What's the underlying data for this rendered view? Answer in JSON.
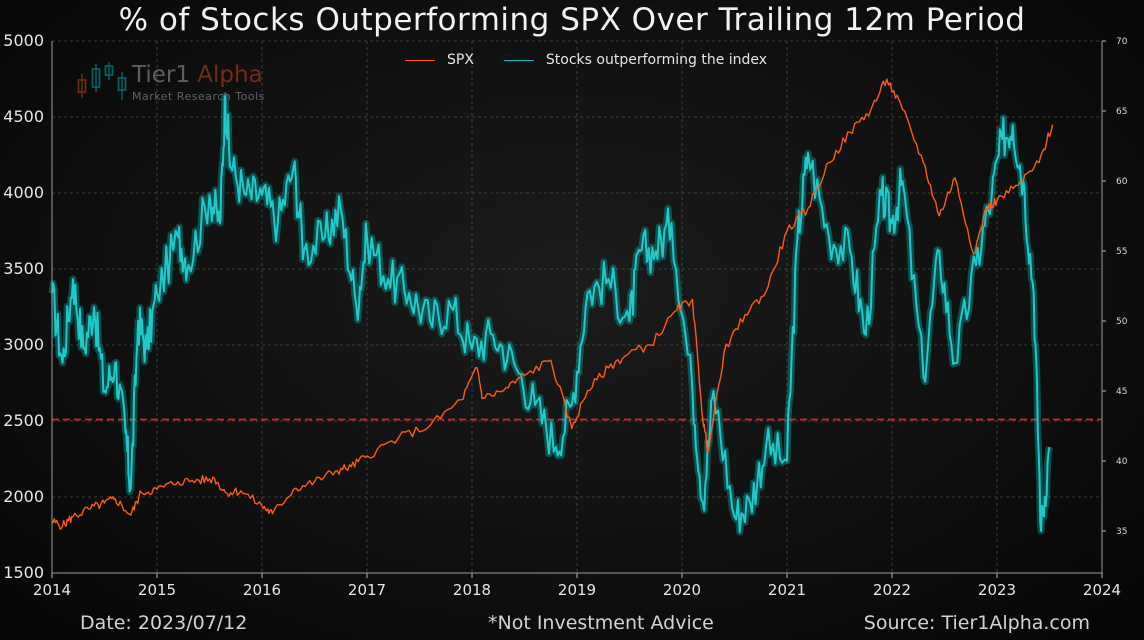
{
  "chart_data": {
    "type": "line",
    "title": "% of Stocks Outperforming SPX Over Trailing 12m Period",
    "x_ticks": [
      "2014",
      "2015",
      "2016",
      "2017",
      "2018",
      "2019",
      "2020",
      "2021",
      "2022",
      "2023",
      "2024"
    ],
    "xlim": [
      2014,
      2024
    ],
    "y_left": {
      "lim": [
        1500,
        5000
      ],
      "ticks": [
        "1500",
        "2000",
        "2500",
        "3000",
        "3500",
        "4000",
        "4500",
        "5000"
      ]
    },
    "y_right": {
      "lim": [
        32,
        70
      ],
      "ticks": [
        "35",
        "40",
        "45",
        "50",
        "55",
        "60",
        "65",
        "70"
      ]
    },
    "reference_line": {
      "axis": "left",
      "value": 2510,
      "color": "#e0201a",
      "style": "dashed"
    },
    "grid": true,
    "legend_position": "top-center",
    "series": [
      {
        "name": "SPX",
        "axis": "left",
        "color": "#ff5a14",
        "x": [
          2014.0,
          2014.1,
          2014.2,
          2014.35,
          2014.5,
          2014.6,
          2014.75,
          2014.85,
          2015.0,
          2015.2,
          2015.4,
          2015.55,
          2015.65,
          2015.8,
          2016.0,
          2016.1,
          2016.3,
          2016.5,
          2016.7,
          2016.85,
          2017.0,
          2017.3,
          2017.6,
          2017.9,
          2018.05,
          2018.1,
          2018.3,
          2018.5,
          2018.75,
          2018.95,
          2019.1,
          2019.3,
          2019.5,
          2019.7,
          2019.95,
          2020.1,
          2020.2,
          2020.25,
          2020.4,
          2020.6,
          2020.8,
          2021.0,
          2021.2,
          2021.4,
          2021.6,
          2021.8,
          2021.95,
          2022.1,
          2022.3,
          2022.45,
          2022.6,
          2022.78,
          2022.9,
          2023.0,
          2023.2,
          2023.4,
          2023.53
        ],
        "y": [
          1840,
          1810,
          1870,
          1920,
          1960,
          1990,
          1880,
          2030,
          2050,
          2100,
          2110,
          2120,
          2030,
          2040,
          1940,
          1890,
          2050,
          2100,
          2170,
          2200,
          2270,
          2390,
          2470,
          2640,
          2850,
          2650,
          2700,
          2800,
          2900,
          2450,
          2700,
          2850,
          2950,
          3000,
          3230,
          3300,
          2500,
          2300,
          2950,
          3200,
          3350,
          3750,
          3900,
          4200,
          4400,
          4550,
          4750,
          4550,
          4200,
          3850,
          4100,
          3600,
          3900,
          3950,
          4050,
          4200,
          4450
        ]
      },
      {
        "name": "Stocks outperforming the index",
        "axis": "right",
        "color": "#00bfbf",
        "x": [
          2014.0,
          2014.1,
          2014.2,
          2014.3,
          2014.4,
          2014.5,
          2014.6,
          2014.7,
          2014.75,
          2014.82,
          2014.9,
          2015.0,
          2015.2,
          2015.3,
          2015.5,
          2015.6,
          2015.65,
          2015.7,
          2015.85,
          2016.0,
          2016.15,
          2016.3,
          2016.4,
          2016.6,
          2016.75,
          2016.9,
          2017.0,
          2017.2,
          2017.4,
          2017.6,
          2017.8,
          2018.0,
          2018.2,
          2018.4,
          2018.6,
          2018.8,
          2018.95,
          2019.1,
          2019.3,
          2019.5,
          2019.6,
          2019.75,
          2019.9,
          2020.1,
          2020.2,
          2020.3,
          2020.5,
          2020.65,
          2020.8,
          2021.0,
          2021.1,
          2021.2,
          2021.4,
          2021.6,
          2021.75,
          2021.9,
          2022.0,
          2022.1,
          2022.3,
          2022.45,
          2022.6,
          2022.8,
          2022.95,
          2023.05,
          2023.15,
          2023.25,
          2023.35,
          2023.42,
          2023.5
        ],
        "y": [
          52,
          47,
          53,
          48,
          51,
          45,
          47,
          42,
          38,
          50,
          48,
          52,
          56,
          54,
          59,
          57,
          66,
          61,
          59,
          59,
          57,
          61,
          55,
          56,
          58,
          51,
          56,
          53,
          52,
          50,
          51,
          48,
          49,
          47,
          44,
          41,
          44,
          52,
          53,
          50,
          55,
          55,
          57,
          45,
          37,
          45,
          36,
          37,
          41,
          40,
          56,
          62,
          56,
          55,
          49,
          59,
          57,
          60,
          46,
          55,
          47,
          54,
          59,
          63,
          64,
          60,
          52,
          35,
          41
        ]
      }
    ]
  },
  "logo": {
    "brand_main": "Tier1 ",
    "brand_accent": "Alpha",
    "tagline": "Market Research Tools"
  },
  "footer": {
    "date": "Date: 2023/07/12",
    "note": "*Not Investment Advice",
    "source": "Source: Tier1Alpha.com"
  }
}
